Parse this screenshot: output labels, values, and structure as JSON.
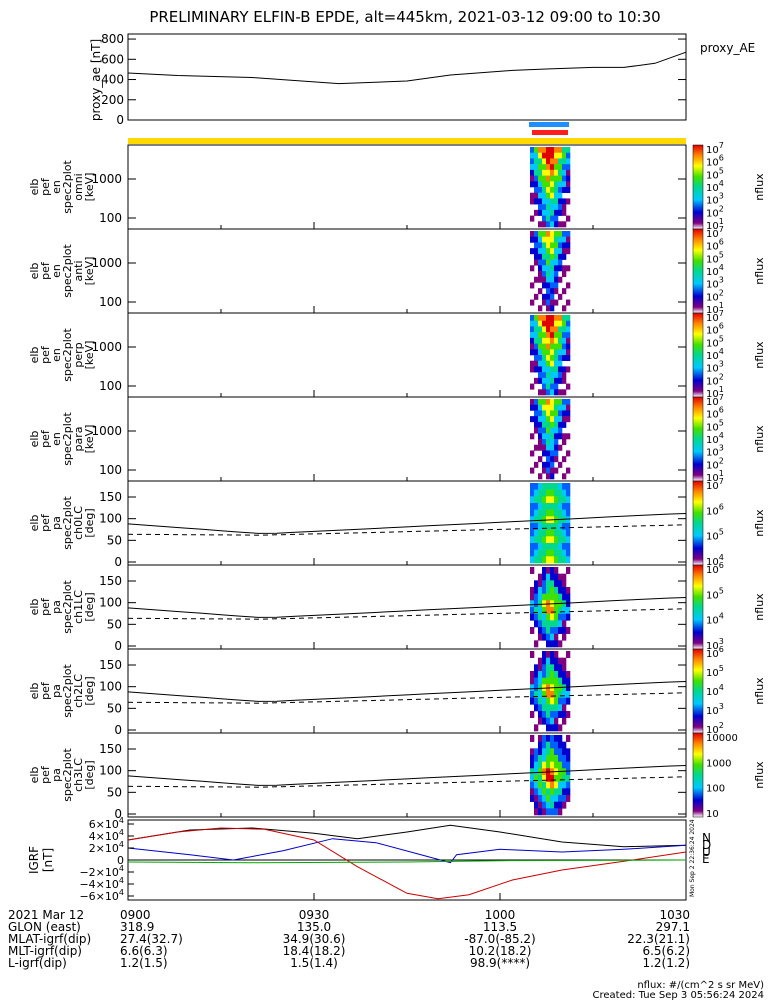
{
  "title": "PRELIMINARY ELFIN-B EPDE, alt=445km, 2021-03-12 09:00 to 10:30",
  "colors": {
    "ae_bar": "#ffd800",
    "sci_blue": "#1e8fff",
    "sci_red": "#ff1e1e",
    "igrf_x": "#000000",
    "igrf_y": "#0000cc",
    "igrf_z": "#cc0000",
    "igrf_e": "#00aa00"
  },
  "chart_data": [
    {
      "type": "line",
      "name": "proxy_ae",
      "ylabel": "proxy_ae [nT]",
      "legend": "proxy_AE",
      "ylim": [
        0,
        850
      ],
      "yticks": [
        "800",
        "600",
        "400",
        "200",
        "0"
      ],
      "x_minutes": [
        0,
        8,
        20,
        34,
        45,
        52,
        62,
        68,
        75,
        80,
        85,
        90
      ],
      "values": [
        465,
        440,
        420,
        360,
        385,
        445,
        490,
        505,
        520,
        520,
        560,
        670
      ]
    },
    {
      "type": "heatmap",
      "name": "spec2plot omni",
      "ylabel": [
        "elb",
        "pef",
        "en",
        "spec2plot",
        "omni",
        "[keV]"
      ],
      "yticks": [
        "1000",
        "100"
      ],
      "cbar_ticks": [
        "10<sup>7</sup>",
        "10<sup>6</sup>",
        "10<sup>5</sup>",
        "10<sup>4</sup>",
        "10<sup>3</sup>",
        "10<sup>2</sup>",
        "10<sup>1</sup>"
      ],
      "cbar_label": "nflux"
    },
    {
      "type": "heatmap",
      "name": "spec2plot anti",
      "ylabel": [
        "elb",
        "pef",
        "en",
        "spec2plot",
        "anti",
        "[keV]"
      ],
      "yticks": [
        "1000",
        "100"
      ],
      "cbar_ticks": [
        "10<sup>7</sup>",
        "10<sup>6</sup>",
        "10<sup>5</sup>",
        "10<sup>4</sup>",
        "10<sup>3</sup>",
        "10<sup>2</sup>",
        "10<sup>1</sup>"
      ],
      "cbar_label": "nflux"
    },
    {
      "type": "heatmap",
      "name": "spec2plot perp",
      "ylabel": [
        "elb",
        "pef",
        "en",
        "spec2plot",
        "perp",
        "[keV]"
      ],
      "yticks": [
        "1000",
        "100"
      ],
      "cbar_ticks": [
        "10<sup>7</sup>",
        "10<sup>6</sup>",
        "10<sup>5</sup>",
        "10<sup>4</sup>",
        "10<sup>3</sup>",
        "10<sup>2</sup>",
        "10<sup>1</sup>"
      ],
      "cbar_label": "nflux"
    },
    {
      "type": "heatmap",
      "name": "spec2plot para",
      "ylabel": [
        "elb",
        "pef",
        "en",
        "spec2plot",
        "para",
        "[keV]"
      ],
      "yticks": [
        "1000",
        "100"
      ],
      "cbar_ticks": [
        "10<sup>7</sup>",
        "10<sup>6</sup>",
        "10<sup>5</sup>",
        "10<sup>4</sup>",
        "10<sup>3</sup>",
        "10<sup>2</sup>",
        "10<sup>1</sup>"
      ],
      "cbar_label": "nflux"
    },
    {
      "type": "heatmap",
      "name": "spec2plot ch0LC",
      "ylabel": [
        "elb",
        "pef",
        "pa",
        "spec2plot",
        "ch0LC",
        "[deg]"
      ],
      "yticks": [
        "150",
        "100",
        "50",
        "0"
      ],
      "cbar_ticks": [
        "10<sup>7</sup>",
        "10<sup>6</sup>",
        "10<sup>5</sup>",
        "10<sup>4</sup>"
      ],
      "cbar_label": "nflux"
    },
    {
      "type": "heatmap",
      "name": "spec2plot ch1LC",
      "ylabel": [
        "elb",
        "pef",
        "pa",
        "spec2plot",
        "ch1LC",
        "[deg]"
      ],
      "yticks": [
        "150",
        "100",
        "50",
        "0"
      ],
      "cbar_ticks": [
        "10<sup>6</sup>",
        "10<sup>5</sup>",
        "10<sup>4</sup>",
        "10<sup>3</sup>"
      ],
      "cbar_label": "nflux"
    },
    {
      "type": "heatmap",
      "name": "spec2plot ch2LC",
      "ylabel": [
        "elb",
        "pef",
        "pa",
        "spec2plot",
        "ch2LC",
        "[deg]"
      ],
      "yticks": [
        "150",
        "100",
        "50",
        "0"
      ],
      "cbar_ticks": [
        "10<sup>6</sup>",
        "10<sup>5</sup>",
        "10<sup>4</sup>",
        "10<sup>3</sup>",
        "10<sup>2</sup>"
      ],
      "cbar_label": "nflux"
    },
    {
      "type": "heatmap",
      "name": "spec2plot ch3LC",
      "ylabel": [
        "elb",
        "pef",
        "pa",
        "spec2plot",
        "ch3LC",
        "[deg]"
      ],
      "yticks": [
        "150",
        "100",
        "50",
        "0"
      ],
      "cbar_ticks": [
        "10000",
        "1000",
        "100",
        "10"
      ],
      "cbar_label": "nflux"
    },
    {
      "type": "line",
      "name": "IGRF",
      "ylabel": "IGRF [nT]",
      "yticks": [
        "6×10<sup>4</sup>",
        "4×10<sup>4</sup>",
        "2×10<sup>4</sup>",
        "0",
        "−2×10<sup>4</sup>",
        "−4×10<sup>4</sup>",
        "−6×10<sup>4</sup>"
      ],
      "legend_letters": [
        "N",
        "D",
        "U",
        "E"
      ],
      "ylim": [
        -60000,
        60000
      ],
      "series": [
        {
          "name": "N",
          "x_minutes": [
            0,
            10,
            20,
            30,
            37,
            45,
            52,
            60,
            70,
            80,
            90
          ],
          "values": [
            30000,
            45000,
            48000,
            40000,
            32000,
            42000,
            52000,
            42000,
            27000,
            20000,
            22000
          ]
        },
        {
          "name": "D",
          "x_minutes": [
            0,
            10,
            17,
            25,
            33,
            40,
            48,
            52,
            53,
            60,
            70,
            80,
            90
          ],
          "values": [
            18000,
            8000,
            0,
            14000,
            32000,
            26000,
            6000,
            -4000,
            8000,
            16000,
            12000,
            16000,
            22000
          ]
        },
        {
          "name": "U",
          "x_minutes": [
            0,
            8,
            15,
            22,
            30,
            37,
            45,
            50,
            55,
            62,
            70,
            80,
            90
          ],
          "values": [
            30000,
            42000,
            48000,
            46000,
            30000,
            -10000,
            -50000,
            -58000,
            -52000,
            -30000,
            -15000,
            -2000,
            12000
          ]
        },
        {
          "name": "E",
          "x_minutes": [
            0,
            20,
            45,
            60,
            90
          ],
          "values": [
            -3000,
            -4000,
            -3000,
            -1000,
            0
          ]
        }
      ]
    }
  ],
  "xaxis": {
    "ticks": [
      "0900",
      "0930",
      "1000",
      "1030"
    ],
    "rows": [
      {
        "label": "2021 Mar 12",
        "values": [
          "0900",
          "0930",
          "1000",
          "1030"
        ]
      },
      {
        "label": "GLON (east)",
        "values": [
          "318.9",
          "135.0",
          "113.5",
          "297.1"
        ]
      },
      {
        "label": "MLAT-igrf(dip)",
        "values": [
          "27.4(32.7)",
          "34.9(30.6)",
          "-87.0(-85.2)",
          "22.3(21.1)"
        ]
      },
      {
        "label": "MLT-igrf(dip)",
        "values": [
          "6.6(6.3)",
          "18.4(18.2)",
          "10.2(18.2)",
          "6.5(6.2)"
        ]
      },
      {
        "label": "L-igrf(dip)",
        "values": [
          "1.2(1.5)",
          "1.5(1.4)",
          "98.9(****)",
          "1.2(1.2)"
        ]
      }
    ]
  },
  "footer": {
    "units": "nflux: #/(cm^2 s sr MeV)",
    "created": "Created: Tue Sep  3 05:56:24 2024"
  },
  "side_stamp": "Mon Sep  2 22:36:24 2024"
}
